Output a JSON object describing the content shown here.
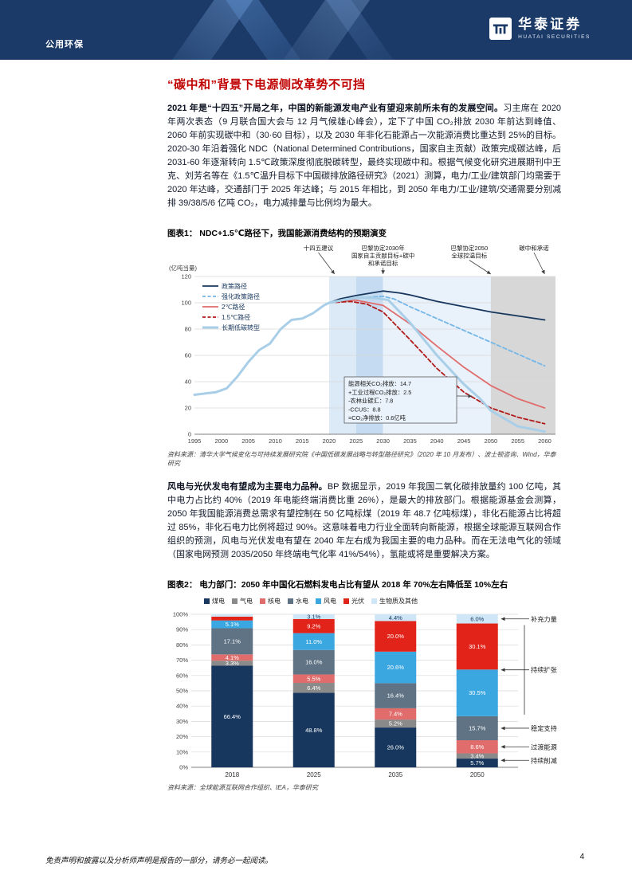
{
  "header": {
    "category": "公用环保",
    "brand_cn": "华泰证券",
    "brand_en": "HUATAI SECURITIES"
  },
  "title": "“碳中和”背景下电源侧改革势不可挡",
  "p1": {
    "lead": "2021 年是“十四五”开局之年，中国的新能源发电产业有望迎来前所未有的发展空间。",
    "body": "习主席在 2020 年两次表态（9 月联合国大会与 12 月气候雄心峰会），定下了中国 CO₂排放 2030 年前达到峰值、2060 年前实现碳中和（30·60 目标），以及 2030 年非化石能源占一次能源消费比重达到 25%的目标。2020-30 年沿着强化 NDC（National Determined Contributions，国家自主贡献）政策完成碳达峰，后 2031-60 年逐渐转向 1.5℃政策深度彻底脱碳转型，最终实现碳中和。根据气候变化研究进展期刊中王克、刘芳名等在《1.5℃温升目标下中国碳排放路径研究》（2021）测算，电力/工业/建筑部门均需要于 2020 年达峰，交通部门于 2025 年达峰；与 2015 年相比，到 2050 年电力/工业/建筑/交通需要分别减排 39/38/5/6 亿吨 CO₂，电力减排量与比例均为最大。"
  },
  "p2": {
    "lead": "风电与光伏发电有望成为主要电力品种。",
    "body": "BP 数据显示，2019 年我国二氧化碳排放量约 100 亿吨，其中电力占比约 40%（2019 年电能终端消费比重 26%），是最大的排放部门。根据能源基金会测算，2050 年我国能源消费总需求有望控制在 50 亿吨标煤（2019 年 48.7 亿吨标煤），非化石能源占比将超过 85%，非化石电力比例将超过 90%。这意味着电力行业全面转向新能源，根据全球能源互联网合作组织的预测，风电与光伏发电有望在 2040 年左右成为我国主要的电力品种。而在无法电气化的领域（国家电网预测 2035/2050 年终端电气化率 41%/54%），氢能或将是重要解决方案。"
  },
  "figure1": {
    "caption": "图表1： NDC+1.5℃路径下，我国能源消费结构的预期演变",
    "source": "资料来源：清华大学气候变化与可持续发展研究院《中国低碳发展战略与转型路径研究》（2020 年 10 月发布）、波士顿咨询、Wind，华泰研究"
  },
  "figure2": {
    "caption": "图表2： 电力部门：2050 年中国化石燃料发电占比有望从 2018 年 70%左右降低至 10%左右",
    "source": "资料来源：全球能源互联网合作组织、IEA，华泰研究"
  },
  "chart_data": [
    {
      "type": "line",
      "title": "NDC+1.5℃路径下，我国能源消费结构的预期演变",
      "ylabel": "(亿吨当量)",
      "ylim": [
        0,
        120
      ],
      "yticks": [
        0,
        20,
        40,
        60,
        80,
        100,
        120
      ],
      "xticks": [
        1995,
        2000,
        2005,
        2010,
        2015,
        2020,
        2025,
        2030,
        2035,
        2040,
        2045,
        2050,
        2055,
        2060
      ],
      "xlim": [
        1995,
        2062
      ],
      "grid": true,
      "legend_position": "top-left",
      "bands": [
        {
          "from": 2020,
          "to": 2025,
          "color": "#dce9f6"
        },
        {
          "from": 2025,
          "to": 2030,
          "color": "#c5dbf1"
        },
        {
          "from": 2030,
          "to": 2050,
          "color": "#e9f1fa"
        },
        {
          "from": 2050,
          "to": 2062,
          "color": "#d7d7d7"
        }
      ],
      "series": [
        {
          "name": "政策路径",
          "color": "#17375e",
          "style": "solid",
          "width": 1.8,
          "x": [
            2020,
            2022,
            2025,
            2030,
            2033,
            2035,
            2040,
            2045,
            2050,
            2055,
            2060
          ],
          "values": [
            100,
            103,
            105.5,
            109,
            107.5,
            106,
            101,
            97,
            93,
            90,
            87
          ]
        },
        {
          "name": "强化政策路径",
          "color": "#74b7e8",
          "style": "dashed",
          "width": 1.8,
          "x": [
            2020,
            2025,
            2030,
            2032,
            2035,
            2040,
            2045,
            2050,
            2055,
            2060
          ],
          "values": [
            100,
            103.5,
            105,
            103,
            97,
            88,
            79,
            70,
            61,
            52
          ]
        },
        {
          "name": "2℃路径",
          "color": "#e06c6c",
          "style": "solid",
          "width": 1.8,
          "x": [
            2020,
            2023,
            2025,
            2030,
            2035,
            2040,
            2045,
            2050,
            2055,
            2060
          ],
          "values": [
            100,
            101.5,
            102,
            98,
            84,
            67,
            51,
            37,
            27,
            20
          ]
        },
        {
          "name": "1.5℃路径",
          "color": "#b21a1a",
          "style": "dashed",
          "width": 1.8,
          "x": [
            2020,
            2024,
            2027,
            2030,
            2035,
            2040,
            2045,
            2050,
            2055,
            2060
          ],
          "values": [
            100,
            101,
            99,
            93,
            72,
            50,
            32,
            20,
            13,
            8
          ]
        },
        {
          "name": "长期低碳转型",
          "color": "#a9cfe8",
          "style": "solid",
          "width": 3,
          "x": [
            1995,
            1997,
            1999,
            2001,
            2003,
            2005,
            2007,
            2009,
            2011,
            2013,
            2015,
            2017,
            2019,
            2020,
            2023,
            2026,
            2029,
            2031,
            2035,
            2040,
            2045,
            2048,
            2050,
            2055,
            2060
          ],
          "values": [
            30,
            31,
            32,
            35,
            44,
            55,
            64,
            69,
            80,
            87,
            88,
            92,
            98,
            100,
            102.5,
            104,
            103.5,
            102,
            85,
            60,
            38,
            27,
            18,
            6,
            2
          ]
        }
      ],
      "annotations": [
        {
          "x": 2018,
          "ax": 2021,
          "lines": [
            "十四五建议"
          ]
        },
        {
          "x": 2030,
          "ax": 2030,
          "lines": [
            "巴黎协定2030年",
            "国家自主贡献目标+碳中",
            "和承诺目标"
          ]
        },
        {
          "x": 2046,
          "ax": 2050,
          "lines": [
            "巴黎协定2050",
            "全球控温目标"
          ]
        },
        {
          "x": 2058,
          "ax": 2060,
          "lines": [
            "碳中和承诺"
          ]
        }
      ],
      "note_box": {
        "lines": [
          "能源相关CO₂排放：14.7",
          "+工业过程CO₂排放：2.5",
          "-农林业碳汇：7.8",
          "-CCUS：8.8",
          "=CO₂净排放：0.6亿吨"
        ],
        "arrow_to": {
          "x": 2046.5,
          "y": 29
        }
      }
    },
    {
      "type": "bar",
      "stacked": true,
      "title": "电力部门：2050 年中国化石燃料发电占比有望从 2018 年 70%左右降低至 10%左右",
      "categories": [
        "2018",
        "2025",
        "2035",
        "2050"
      ],
      "series": [
        {
          "name": "煤电",
          "color": "#17375e",
          "values": [
            66.4,
            48.8,
            26.0,
            5.7
          ]
        },
        {
          "name": "气电",
          "color": "#8a8a8a",
          "values": [
            3.3,
            6.4,
            5.2,
            3.4
          ]
        },
        {
          "name": "核电",
          "color": "#e06c6c",
          "values": [
            4.1,
            5.5,
            7.4,
            8.6
          ]
        },
        {
          "name": "水电",
          "color": "#5f7384",
          "values": [
            17.1,
            16.0,
            16.4,
            15.7
          ]
        },
        {
          "name": "风电",
          "color": "#3ba7e0",
          "values": [
            5.1,
            11.0,
            20.6,
            30.5
          ]
        },
        {
          "name": "光伏",
          "color": "#e2231a",
          "values": [
            2.5,
            9.2,
            20.0,
            30.1
          ]
        },
        {
          "name": "生物质及其他",
          "color": "#cfe6f6",
          "values": [
            1.6,
            3.1,
            4.4,
            6.0
          ]
        }
      ],
      "ylim": [
        0,
        100
      ],
      "ytick_step": 10,
      "label_threshold": 3,
      "right_annotations": [
        {
          "text": "补充力量",
          "series": [
            "生物质及其他"
          ]
        },
        {
          "text": "持续扩张",
          "series": [
            "风电",
            "光伏"
          ]
        },
        {
          "text": "稳定支持",
          "series": [
            "水电"
          ]
        },
        {
          "text": "过渡能源",
          "series": [
            "核电"
          ]
        },
        {
          "text": "持续削减",
          "series": [
            "煤电",
            "气电"
          ]
        }
      ]
    }
  ],
  "footer": {
    "disclaimer": "免责声明和披露以及分析师声明是报告的一部分，请务必一起阅读。",
    "page": "4"
  }
}
